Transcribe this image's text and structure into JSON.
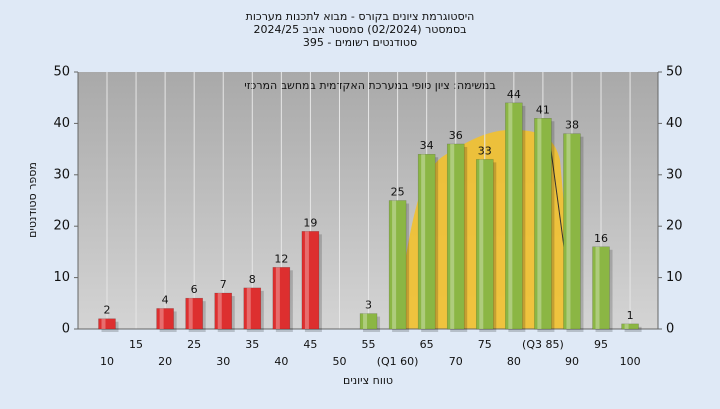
{
  "chart_data": {
    "type": "bar",
    "title": "היסטוגרמת ציונים בקורס - מבוא לתכנות מערכות",
    "subtitle": "בסמסטר  (02/2024)  סמסטר אביב 2024/25",
    "subtitle2": "395 - סטודנטים רשומים",
    "annotation": "במשימה: ציון סופי במערכת האקדמית במחשב המרכזי",
    "x_label": "טווח ציונים",
    "y_label": "מספר סטודנטים",
    "categories": [
      "10",
      "15",
      "20",
      "25",
      "30",
      "35",
      "40",
      "45",
      "50",
      "55",
      "(Q1 60)",
      "65",
      "70",
      "75",
      "80",
      "(Q3 85)",
      "90",
      "95",
      "100"
    ],
    "series": [
      {
        "color": "#dd2f2f",
        "values": [
          2,
          null,
          4,
          6,
          7,
          8,
          12,
          19,
          null,
          null,
          null,
          null,
          null,
          null,
          null,
          null,
          null,
          null,
          null
        ]
      },
      {
        "color": "#8bb644",
        "values": [
          null,
          null,
          null,
          null,
          null,
          null,
          null,
          null,
          null,
          3,
          25,
          34,
          36,
          33,
          44,
          41,
          38,
          16,
          1
        ]
      }
    ],
    "ylim": [
      0,
      50
    ],
    "yticks": [
      0,
      10,
      20,
      30,
      40,
      50
    ],
    "y2lim": [
      0,
      50
    ],
    "y2ticks": [
      0,
      10,
      20,
      30,
      40,
      50
    ],
    "grid": true
  }
}
